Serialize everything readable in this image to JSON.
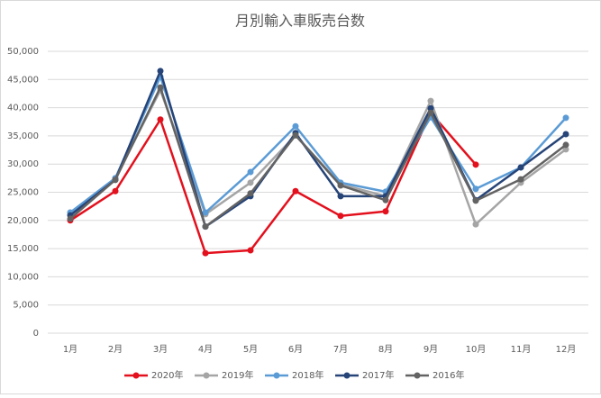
{
  "chart_data": {
    "type": "line",
    "title": "月別輸入車販売台数",
    "categories": [
      "1月",
      "2月",
      "3月",
      "4月",
      "5月",
      "6月",
      "7月",
      "8月",
      "9月",
      "10月",
      "11月",
      "12月"
    ],
    "series": [
      {
        "name": "2020年",
        "color": "#e3101d",
        "values": [
          20000,
          25200,
          37900,
          14200,
          14700,
          25200,
          20800,
          21600,
          39100,
          29900,
          null,
          null
        ]
      },
      {
        "name": "2019年",
        "color": "#a5a5a5",
        "values": [
          21400,
          27500,
          43100,
          21100,
          26700,
          35100,
          26400,
          24300,
          41200,
          19300,
          26700,
          32600
        ]
      },
      {
        "name": "2018年",
        "color": "#5b9bd5",
        "values": [
          21400,
          27500,
          45500,
          21400,
          28600,
          36700,
          26700,
          25100,
          38300,
          25600,
          29400,
          38200
        ]
      },
      {
        "name": "2017年",
        "color": "#264478",
        "values": [
          20900,
          27200,
          46500,
          18900,
          24300,
          35500,
          24300,
          24300,
          39900,
          23600,
          29400,
          35300
        ]
      },
      {
        "name": "2016年",
        "color": "#636363",
        "values": [
          20300,
          27200,
          43600,
          18900,
          24800,
          35100,
          26200,
          23600,
          39100,
          23500,
          27300,
          33400
        ]
      }
    ],
    "ylim": [
      0,
      50000
    ],
    "yticks": [
      0,
      {
        "value": 5000,
        "label": "5,000"
      },
      {
        "value": 10000,
        "label": "10,000"
      },
      {
        "value": 15000,
        "label": "15,000"
      },
      {
        "value": 20000,
        "label": "20,000"
      },
      {
        "value": 25000,
        "label": "25,000"
      },
      {
        "value": 30000,
        "label": "30,000"
      },
      {
        "value": 35000,
        "label": "35,000"
      },
      {
        "value": 40000,
        "label": "40,000"
      },
      {
        "value": 45000,
        "label": "45,000"
      },
      {
        "value": 50000,
        "label": "50,000"
      }
    ],
    "grid": true,
    "legend": "bottom"
  }
}
